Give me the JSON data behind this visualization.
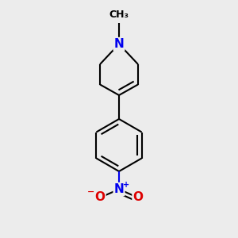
{
  "background_color": "#ececec",
  "bond_color": "#000000",
  "N_color": "#0000ee",
  "O_color": "#dd0000",
  "line_width": 1.5,
  "figsize": [
    3.0,
    3.0
  ],
  "dpi": 100,
  "font_size": 10,
  "methyl_label": "CH₃",
  "N_label": "N",
  "O_label": "O",
  "plus_label": "+",
  "minus_label": "−"
}
